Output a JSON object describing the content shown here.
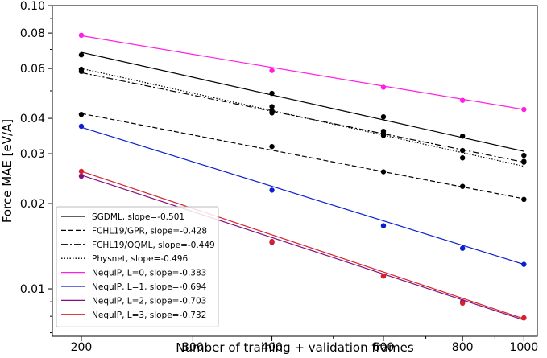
{
  "chart_data": {
    "type": "scatter",
    "scale": "log-log",
    "title": "",
    "xlabel": "Number of training + validation frames",
    "ylabel": "Force MAE [eV/A]",
    "xlim": [
      180,
      1050
    ],
    "ylim": [
      0.0068,
      0.1
    ],
    "x_ticks": [
      200,
      300,
      400,
      600,
      800,
      1000
    ],
    "x_tick_labels": [
      "200",
      "300",
      "400",
      "600",
      "800",
      "1000"
    ],
    "y_ticks": [
      0.01,
      0.02,
      0.03,
      0.04,
      0.06,
      0.08,
      0.1
    ],
    "y_tick_labels": [
      "0.01",
      "0.02",
      "0.03",
      "0.04",
      "0.06",
      "0.08",
      "0.10"
    ],
    "legend_position": "lower-left",
    "series": [
      {
        "name": "SGDML, slope=-0.501",
        "color": "#000000",
        "dash": "solid",
        "fit": [
          0.0684,
          0.0306
        ],
        "points": [
          [
            200,
            0.067
          ],
          [
            400,
            0.049
          ],
          [
            400,
            0.044
          ],
          [
            400,
            0.0418
          ],
          [
            600,
            0.0405
          ],
          [
            600,
            0.036
          ],
          [
            800,
            0.0346
          ],
          [
            1000,
            0.0296
          ]
        ]
      },
      {
        "name": "FCHL19/GPR, slope=-0.428",
        "color": "#000000",
        "dash": "dashed",
        "fit": [
          0.0416,
          0.0208
        ],
        "points": [
          [
            200,
            0.0413
          ],
          [
            400,
            0.0318
          ],
          [
            600,
            0.0259
          ],
          [
            800,
            0.023
          ],
          [
            1000,
            0.0207
          ]
        ]
      },
      {
        "name": "FCHL19/OQML, slope=-0.449",
        "color": "#000000",
        "dash": "dashdot",
        "fit": [
          0.058,
          0.028
        ],
        "points": [
          [
            200,
            0.0586
          ],
          [
            400,
            0.0425
          ],
          [
            600,
            0.0353
          ],
          [
            800,
            0.029
          ],
          [
            1000,
            0.028
          ]
        ]
      },
      {
        "name": "Physnet, slope=-0.496",
        "color": "#000000",
        "dash": "dotted",
        "fit": [
          0.06,
          0.0271
        ],
        "points": [
          [
            200,
            0.0596
          ],
          [
            400,
            0.042
          ],
          [
            600,
            0.0348
          ],
          [
            800,
            0.0308
          ],
          [
            1000,
            0.0282
          ]
        ]
      },
      {
        "name": "NequIP, L=0, slope=-0.383",
        "color": "#ff1fe0",
        "dash": "solid",
        "fit": [
          0.0783,
          0.043
        ],
        "points": [
          [
            200,
            0.0786
          ],
          [
            400,
            0.059
          ],
          [
            600,
            0.0515
          ],
          [
            800,
            0.0463
          ],
          [
            1000,
            0.043
          ]
        ]
      },
      {
        "name": "NequIP, L=1, slope=-0.694",
        "color": "#0a1fd0",
        "dash": "solid",
        "fit": [
          0.0372,
          0.0122
        ],
        "points": [
          [
            200,
            0.0375
          ],
          [
            400,
            0.0223
          ],
          [
            600,
            0.0167
          ],
          [
            800,
            0.0139
          ],
          [
            1000,
            0.0122
          ]
        ]
      },
      {
        "name": "NequIP, L=2, slope=-0.703",
        "color": "#80107f",
        "dash": "solid",
        "fit": [
          0.0252,
          0.00776
        ],
        "points": [
          [
            200,
            0.025
          ],
          [
            400,
            0.0146
          ],
          [
            600,
            0.0111
          ],
          [
            800,
            0.009
          ],
          [
            1000,
            0.0079
          ]
        ]
      },
      {
        "name": "NequIP, L=3, slope=-0.732",
        "color": "#d8202a",
        "dash": "solid",
        "fit": [
          0.026,
          0.00784
        ],
        "points": [
          [
            200,
            0.026
          ],
          [
            400,
            0.0147
          ],
          [
            600,
            0.0111
          ],
          [
            800,
            0.0089
          ],
          [
            1000,
            0.0079
          ]
        ]
      }
    ]
  }
}
